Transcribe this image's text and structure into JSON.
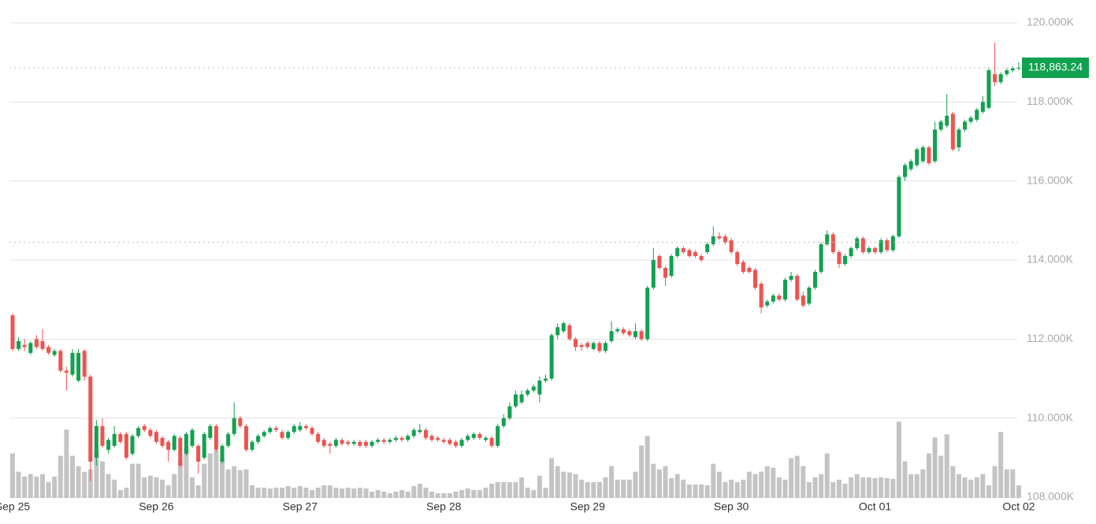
{
  "chart_data": {
    "type": "candlestick",
    "up_color": "#12a150",
    "down_color": "#ef5350",
    "volume_color": "#c4c4c4",
    "grid": true,
    "ylim": [
      108000,
      120000
    ],
    "yticks": [
      {
        "value": 108000,
        "label": "108.000K"
      },
      {
        "value": 110000,
        "label": "110.000K"
      },
      {
        "value": 112000,
        "label": "112.000K"
      },
      {
        "value": 114000,
        "label": "114.000K"
      },
      {
        "value": 116000,
        "label": "116.000K"
      },
      {
        "value": 118000,
        "label": "118.000K"
      },
      {
        "value": 120000,
        "label": "120.000K"
      }
    ],
    "xlim": [
      -2.1,
      168.4
    ],
    "xticks": [
      {
        "value": 0,
        "label": "Sep 25"
      },
      {
        "value": 24,
        "label": "Sep 26"
      },
      {
        "value": 48,
        "label": "Sep 27"
      },
      {
        "value": 72,
        "label": "Sep 28"
      },
      {
        "value": 96,
        "label": "Sep 29"
      },
      {
        "value": 120,
        "label": "Sep 30"
      },
      {
        "value": 144,
        "label": "Oct 01"
      },
      {
        "value": 168,
        "label": "Oct 02"
      }
    ],
    "last_price": {
      "value": 118863.24,
      "label": "118,863.24"
    },
    "reference_line": 114450,
    "open": [
      112600,
      111750,
      111850,
      111650,
      112000,
      111950,
      111800,
      111600,
      111700,
      111200,
      111100,
      110950,
      111700,
      111050,
      109000,
      109800,
      109200,
      109300,
      109600,
      109600,
      109100,
      109550,
      109800,
      109700,
      109650,
      109500,
      109400,
      109200,
      109500,
      109100,
      109300,
      109300,
      109000,
      109500,
      109800,
      108900,
      109300,
      109600,
      110000,
      109800,
      109200,
      109400,
      109550,
      109650,
      109750,
      109650,
      109500,
      109650,
      109700,
      109800,
      109750,
      109600,
      109450,
      109350,
      109300,
      109450,
      109400,
      109350,
      109400,
      109400,
      109300,
      109400,
      109450,
      109400,
      109450,
      109500,
      109450,
      109550,
      109650,
      109700,
      109550,
      109500,
      109450,
      109450,
      109400,
      109300,
      109450,
      109500,
      109600,
      109450,
      109500,
      109300,
      109800,
      110000,
      110300,
      110400,
      110600,
      110700,
      110600,
      110950,
      111000,
      112100,
      112200,
      112350,
      112000,
      111850,
      111900,
      111750,
      111900,
      111700,
      111950,
      112200,
      112250,
      112200,
      112050,
      112200,
      112000,
      113300,
      114100,
      113800,
      113600,
      114100,
      114300,
      114250,
      114200,
      114100,
      114200,
      114400,
      114600,
      114600,
      114500,
      114200,
      113950,
      113800,
      113750,
      113400,
      112850,
      112950,
      113100,
      113000,
      113500,
      113600,
      113100,
      112900,
      113300,
      113700,
      114400,
      114650,
      114200,
      113900,
      114100,
      114300,
      114550,
      114200,
      114300,
      114200,
      114500,
      114250,
      114600,
      116100,
      116300,
      116400,
      116500,
      116850,
      116500,
      117300,
      117400,
      117700,
      116850,
      117300,
      117500,
      117550,
      117750,
      117850,
      118700,
      118500,
      118700,
      118800,
      118850
    ],
    "high": [
      112650,
      112050,
      112000,
      111950,
      112100,
      112250,
      111850,
      111750,
      111750,
      111300,
      111750,
      111750,
      111750,
      111100,
      109950,
      110000,
      109500,
      109800,
      109650,
      109650,
      109600,
      109800,
      109850,
      109750,
      109700,
      109550,
      109450,
      109600,
      109550,
      109650,
      109750,
      109350,
      109650,
      109850,
      109850,
      109350,
      109650,
      110400,
      110050,
      109850,
      109450,
      109600,
      109700,
      109800,
      109800,
      109700,
      109700,
      109850,
      109900,
      109850,
      109800,
      109650,
      109500,
      109400,
      109500,
      109500,
      109450,
      109450,
      109450,
      109450,
      109450,
      109500,
      109500,
      109500,
      109550,
      109550,
      109600,
      109750,
      109850,
      109750,
      109600,
      109550,
      109500,
      109500,
      109450,
      109500,
      109600,
      109650,
      109650,
      109550,
      109550,
      109850,
      110100,
      110400,
      110700,
      110700,
      110750,
      110850,
      111050,
      111100,
      112150,
      112400,
      112450,
      112400,
      112050,
      111900,
      111950,
      111950,
      111950,
      111950,
      112450,
      112300,
      112300,
      112250,
      112400,
      112250,
      113350,
      114300,
      114150,
      113850,
      114150,
      114350,
      114350,
      114300,
      114250,
      114150,
      114450,
      114850,
      114700,
      114650,
      114550,
      114250,
      114000,
      113850,
      113800,
      113450,
      113000,
      113150,
      113150,
      113550,
      113700,
      113650,
      113200,
      113350,
      113750,
      114450,
      114750,
      114700,
      114250,
      114150,
      114350,
      114600,
      114600,
      114350,
      114350,
      114550,
      114550,
      114650,
      116150,
      116450,
      116550,
      116850,
      116900,
      116900,
      117500,
      117550,
      118200,
      117750,
      117350,
      117550,
      117650,
      117850,
      118150,
      118850,
      119500,
      118750,
      118850,
      118900,
      119000
    ],
    "low": [
      111700,
      111700,
      111700,
      111600,
      111750,
      111700,
      111600,
      111550,
      111150,
      110700,
      111050,
      110900,
      110950,
      108400,
      108800,
      109250,
      109100,
      109250,
      109350,
      108950,
      109050,
      109500,
      109650,
      109500,
      109350,
      109250,
      108900,
      109150,
      108750,
      109050,
      109250,
      108600,
      108950,
      109450,
      109150,
      108850,
      109250,
      109550,
      109750,
      109150,
      109150,
      109350,
      109500,
      109600,
      109650,
      109450,
      109450,
      109600,
      109650,
      109700,
      109550,
      109350,
      109250,
      109100,
      109250,
      109300,
      109300,
      109300,
      109250,
      109250,
      109250,
      109350,
      109350,
      109350,
      109400,
      109400,
      109400,
      109500,
      109600,
      109450,
      109400,
      109400,
      109350,
      109300,
      109250,
      109250,
      109400,
      109450,
      109450,
      109400,
      109250,
      109250,
      109750,
      109950,
      110250,
      110350,
      110550,
      110650,
      110400,
      110900,
      110950,
      112000,
      112150,
      111950,
      111700,
      111700,
      111750,
      111700,
      111650,
      111650,
      111900,
      112150,
      112100,
      112050,
      112000,
      111950,
      111950,
      113250,
      113750,
      113350,
      113550,
      114050,
      114150,
      114050,
      114050,
      113950,
      114150,
      114350,
      114500,
      114400,
      114150,
      113850,
      113650,
      113650,
      113250,
      112650,
      112800,
      112900,
      112950,
      112950,
      113450,
      112950,
      112800,
      112850,
      113250,
      113650,
      114350,
      114150,
      113800,
      113850,
      114050,
      114250,
      114150,
      114150,
      114150,
      114150,
      114200,
      114200,
      114550,
      116000,
      116250,
      116350,
      116450,
      116400,
      116450,
      117250,
      117350,
      116750,
      116750,
      117250,
      117450,
      117500,
      117700,
      117800,
      118400,
      118450,
      118650,
      118750,
      118800
    ],
    "close": [
      111750,
      111950,
      111800,
      111900,
      111800,
      111750,
      111650,
      111700,
      111200,
      111150,
      111650,
      111650,
      111050,
      108900,
      109800,
      109300,
      109450,
      109600,
      109400,
      109000,
      109550,
      109750,
      109700,
      109550,
      109400,
      109300,
      109200,
      109550,
      108800,
      109600,
      109700,
      108900,
      109600,
      109800,
      109200,
      109300,
      109600,
      110000,
      109800,
      109200,
      109400,
      109550,
      109650,
      109750,
      109700,
      109500,
      109650,
      109800,
      109800,
      109750,
      109600,
      109400,
      109300,
      109300,
      109450,
      109350,
      109350,
      109400,
      109300,
      109300,
      109400,
      109450,
      109400,
      109450,
      109500,
      109450,
      109550,
      109700,
      109700,
      109500,
      109450,
      109450,
      109400,
      109350,
      109300,
      109450,
      109550,
      109600,
      109500,
      109500,
      109300,
      109800,
      110000,
      110300,
      110600,
      110600,
      110700,
      110800,
      110950,
      111000,
      112100,
      112300,
      112400,
      112000,
      111800,
      111800,
      111800,
      111900,
      111700,
      111900,
      112200,
      112250,
      112150,
      112100,
      112200,
      112000,
      113300,
      114000,
      113800,
      113550,
      114100,
      114300,
      114200,
      114100,
      114100,
      114000,
      114400,
      114600,
      114550,
      114450,
      114200,
      113900,
      113700,
      113700,
      113300,
      112800,
      112950,
      113100,
      113000,
      113500,
      113600,
      113000,
      112850,
      113300,
      113700,
      114400,
      114650,
      114200,
      113900,
      114100,
      114300,
      114550,
      114200,
      114300,
      114200,
      114500,
      114250,
      114600,
      116100,
      116400,
      116500,
      116800,
      116850,
      116450,
      117300,
      117500,
      117650,
      116800,
      117300,
      117500,
      117600,
      117800,
      118000,
      118800,
      118500,
      118700,
      118800,
      118850,
      118863.24
    ],
    "volume": [
      56,
      33,
      27,
      30,
      27,
      30,
      20,
      27,
      53,
      86,
      53,
      40,
      33,
      36,
      60,
      46,
      30,
      23,
      10,
      13,
      43,
      43,
      26,
      28,
      26,
      23,
      16,
      30,
      47,
      63,
      26,
      16,
      43,
      56,
      60,
      50,
      36,
      40,
      35,
      36,
      16,
      13,
      13,
      12,
      13,
      13,
      15,
      13,
      15,
      13,
      10,
      13,
      16,
      16,
      13,
      12,
      13,
      12,
      13,
      12,
      8,
      10,
      8,
      6,
      8,
      10,
      8,
      15,
      18,
      13,
      8,
      6,
      6,
      6,
      8,
      10,
      12,
      10,
      10,
      13,
      18,
      20,
      20,
      20,
      20,
      26,
      13,
      10,
      28,
      13,
      50,
      40,
      33,
      32,
      30,
      23,
      20,
      20,
      20,
      26,
      40,
      23,
      23,
      23,
      33,
      66,
      78,
      43,
      36,
      40,
      25,
      30,
      23,
      17,
      17,
      17,
      16,
      43,
      33,
      20,
      23,
      20,
      23,
      33,
      30,
      33,
      40,
      38,
      26,
      23,
      50,
      53,
      40,
      20,
      26,
      30,
      56,
      20,
      23,
      18,
      26,
      30,
      26,
      26,
      25,
      26,
      25,
      24,
      96,
      46,
      30,
      30,
      36,
      56,
      76,
      53,
      80,
      40,
      30,
      26,
      23,
      26,
      30,
      16,
      40,
      83,
      36,
      36,
      16
    ]
  }
}
